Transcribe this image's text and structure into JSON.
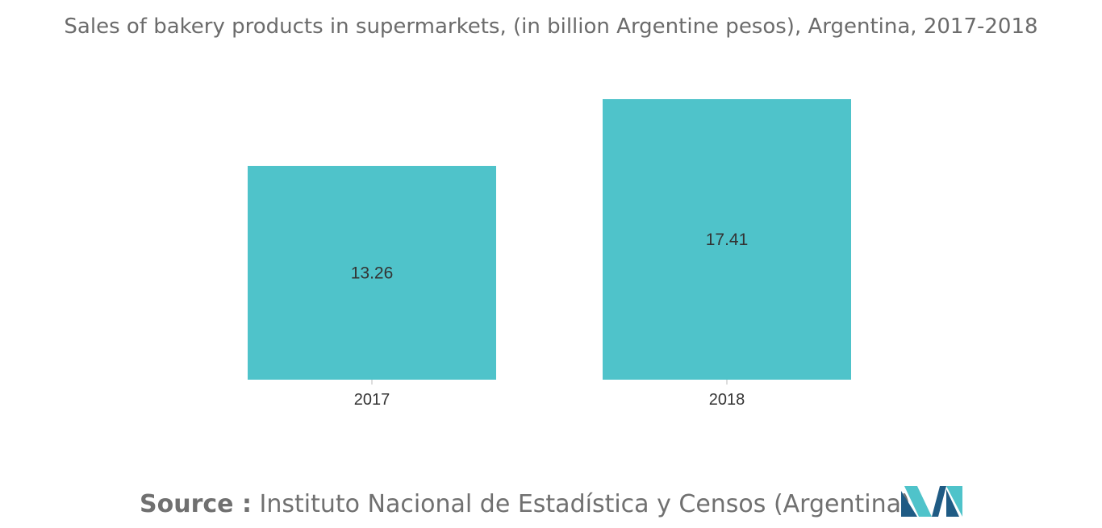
{
  "title": "Sales of bakery products in supermarkets, (in billion Argentine pesos), Argentina, 2017-2018",
  "source": {
    "label": "Source :",
    "text": "Instituto Nacional de Estadística y Censos (Argentina)"
  },
  "colors": {
    "bar": "#4fc3ca",
    "logo_dark": "#1f5b84",
    "logo_light": "#4fc3ca"
  },
  "logo_icon": "mordor-intelligence-logo-icon",
  "chart_data": {
    "type": "bar",
    "title": "Sales of bakery products in supermarkets, (in billion Argentine pesos), Argentina, 2017-2018",
    "categories": [
      "2017",
      "2018"
    ],
    "values": [
      13.26,
      17.41
    ],
    "data_labels": [
      "13.26",
      "17.41"
    ],
    "xlabel": "",
    "ylabel": "",
    "ylim": [
      0,
      17.41
    ],
    "grid": false,
    "legend": "none"
  }
}
